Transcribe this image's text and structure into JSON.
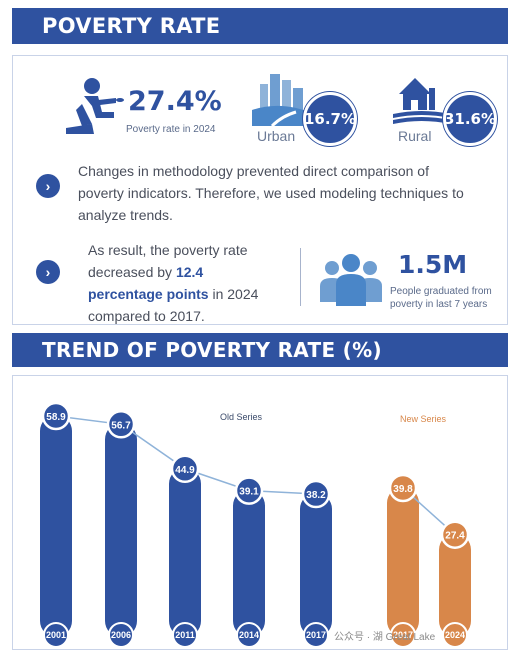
{
  "header": {
    "title": "POVERTY RATE"
  },
  "stats": {
    "overall_value": "27.4%",
    "overall_caption": "Poverty rate in 2024",
    "urban_label": "Urban",
    "urban_value": "16.7%",
    "rural_label": "Rural",
    "rural_value": "31.6%"
  },
  "notes": {
    "methodology": [
      "Changes in methodology prevented direct comparison of",
      "poverty indicators. Therefore, we used modeling techniques to",
      "analyze trends."
    ],
    "result_pre": "As result, the poverty rate",
    "result_mid_pre": "decreased by ",
    "result_highlight_1": "12.4",
    "result_highlight_2": "percentage points",
    "result_mid_post": " in 2024",
    "result_post": "compared to 2017.",
    "graduates_value": "1.5M",
    "graduates_caption": [
      "People graduated from",
      "poverty in last 7 years"
    ]
  },
  "trend": {
    "title": "TREND OF POVERTY RATE (%)"
  },
  "colors": {
    "primary": "#2f52a0",
    "new_series": "#d8874a",
    "line": "#8fb3d9"
  },
  "icons": [
    "person-kneeling-icon",
    "city-icon",
    "farmhouse-icon",
    "people-group-icon",
    "chevron-right-icon"
  ],
  "chart_data": {
    "type": "bar",
    "categories": [
      "2001",
      "2006",
      "2011",
      "2014",
      "2017",
      "2017",
      "2024"
    ],
    "series": [
      {
        "name": "Old Series",
        "x": [
          "2001",
          "2006",
          "2011",
          "2014",
          "2017"
        ],
        "values": [
          58.9,
          56.7,
          44.9,
          39.1,
          38.2
        ]
      },
      {
        "name": "New Series",
        "x": [
          "2017",
          "2024"
        ],
        "values": [
          39.8,
          27.4
        ]
      }
    ],
    "title": "TREND OF POVERTY RATE (%)",
    "ylim": [
      0,
      60
    ]
  },
  "watermark": "公众号 · 湖 Great Lake"
}
